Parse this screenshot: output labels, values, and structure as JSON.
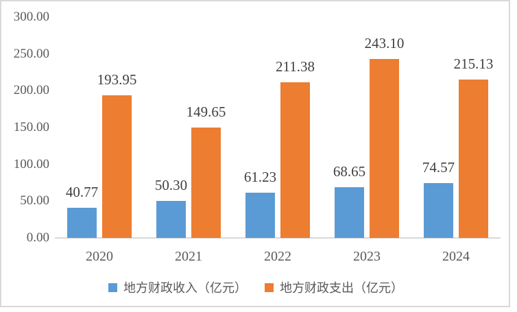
{
  "chart_data": {
    "type": "bar",
    "title": "",
    "xlabel": "",
    "ylabel": "",
    "categories": [
      "2020",
      "2021",
      "2022",
      "2023",
      "2024"
    ],
    "series": [
      {
        "name": "地方财政收入（亿元）",
        "color": "#5B9BD5",
        "values": [
          40.77,
          50.3,
          61.23,
          68.65,
          74.57
        ],
        "labels": [
          "40.77",
          "50.30",
          "61.23",
          "68.65",
          "74.57"
        ]
      },
      {
        "name": "地方财政支出（亿元）",
        "color": "#ED7D31",
        "values": [
          193.95,
          149.65,
          211.38,
          243.1,
          215.13
        ],
        "labels": [
          "193.95",
          "149.65",
          "211.38",
          "243.10",
          "215.13"
        ]
      }
    ],
    "ylim": [
      0,
      300
    ],
    "ytick_step": 50,
    "ytick_values": [
      0,
      50,
      100,
      150,
      200,
      250,
      300
    ],
    "ytick_labels": [
      "0.00",
      "50.00",
      "100.00",
      "150.00",
      "200.00",
      "250.00",
      "300.00"
    ],
    "grid": false,
    "legend_position": "bottom",
    "colors": {
      "background": "#FFFFFF",
      "border": "#D9D9D9",
      "axis_line": "#D9D9D9",
      "tick_text": "#595959",
      "data_label_text": "#404040",
      "legend_text": "#595959"
    }
  }
}
